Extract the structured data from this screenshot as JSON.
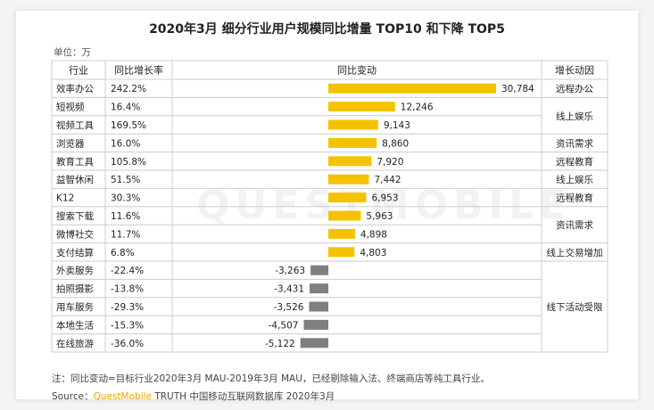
{
  "title": "2020年3月 细分行业用户规模同比增量 TOP10 和下降 TOP5",
  "unit_label": "单位：万",
  "headers": {
    "industry": "行业",
    "yoy_rate": "同比增长率",
    "yoy_change": "同比变动",
    "driver": "增长动因"
  },
  "colors": {
    "positive_bar": "#F5C200",
    "negative_bar": "#7F7F7F",
    "grid": "#CCCCCC"
  },
  "watermark": "QUESTMOBILE",
  "note": "注：同比变动=目标行业2020年3月 MAU-2019年3月 MAU，已经剔除输入法、终端商店等纯工具行业。",
  "source": {
    "prefix": "Source：",
    "brand": "QuestMobile",
    "suffix": " TRUTH 中国移动互联网数据库 2020年3月"
  },
  "drivers": [
    {
      "text": "远程办公",
      "start": 0,
      "span": 1
    },
    {
      "text": "线上娱乐",
      "start": 1,
      "span": 2
    },
    {
      "text": "资讯需求",
      "start": 3,
      "span": 1
    },
    {
      "text": "远程教育",
      "start": 4,
      "span": 1
    },
    {
      "text": "线上娱乐",
      "start": 5,
      "span": 1
    },
    {
      "text": "远程教育",
      "start": 6,
      "span": 1
    },
    {
      "text": "资讯需求",
      "start": 7,
      "span": 2
    },
    {
      "text": "线上交易增加",
      "start": 9,
      "span": 1
    },
    {
      "text": "线下活动受限",
      "start": 10,
      "span": 5
    }
  ],
  "chart_data": {
    "type": "bar",
    "orientation": "horizontal",
    "title": "2020年3月 细分行业用户规模同比增量 TOP10 和下降 TOP5",
    "unit": "万",
    "categories": [
      "效率办公",
      "短视频",
      "视频工具",
      "浏览器",
      "教育工具",
      "益智休闲",
      "K12",
      "搜索下载",
      "微博社交",
      "支付结算",
      "外卖服务",
      "拍照摄影",
      "用车服务",
      "本地生活",
      "在线旅游"
    ],
    "growth_rate_labels": [
      "242.2%",
      "16.4%",
      "169.5%",
      "16.0%",
      "105.8%",
      "51.5%",
      "30.3%",
      "11.6%",
      "11.7%",
      "6.8%",
      "-22.4%",
      "-13.8%",
      "-29.3%",
      "-15.3%",
      "-36.0%"
    ],
    "values": [
      30784,
      12246,
      9143,
      8860,
      7920,
      7442,
      6953,
      5963,
      4898,
      4803,
      -3263,
      -3431,
      -3526,
      -4507,
      -5122
    ],
    "value_labels": [
      "30,784",
      "12,246",
      "9,143",
      "8,860",
      "7,920",
      "7,442",
      "6,953",
      "5,963",
      "4,898",
      "4,803",
      "-3,263",
      "-3,431",
      "-3,526",
      "-4,507",
      "-5,122"
    ]
  }
}
